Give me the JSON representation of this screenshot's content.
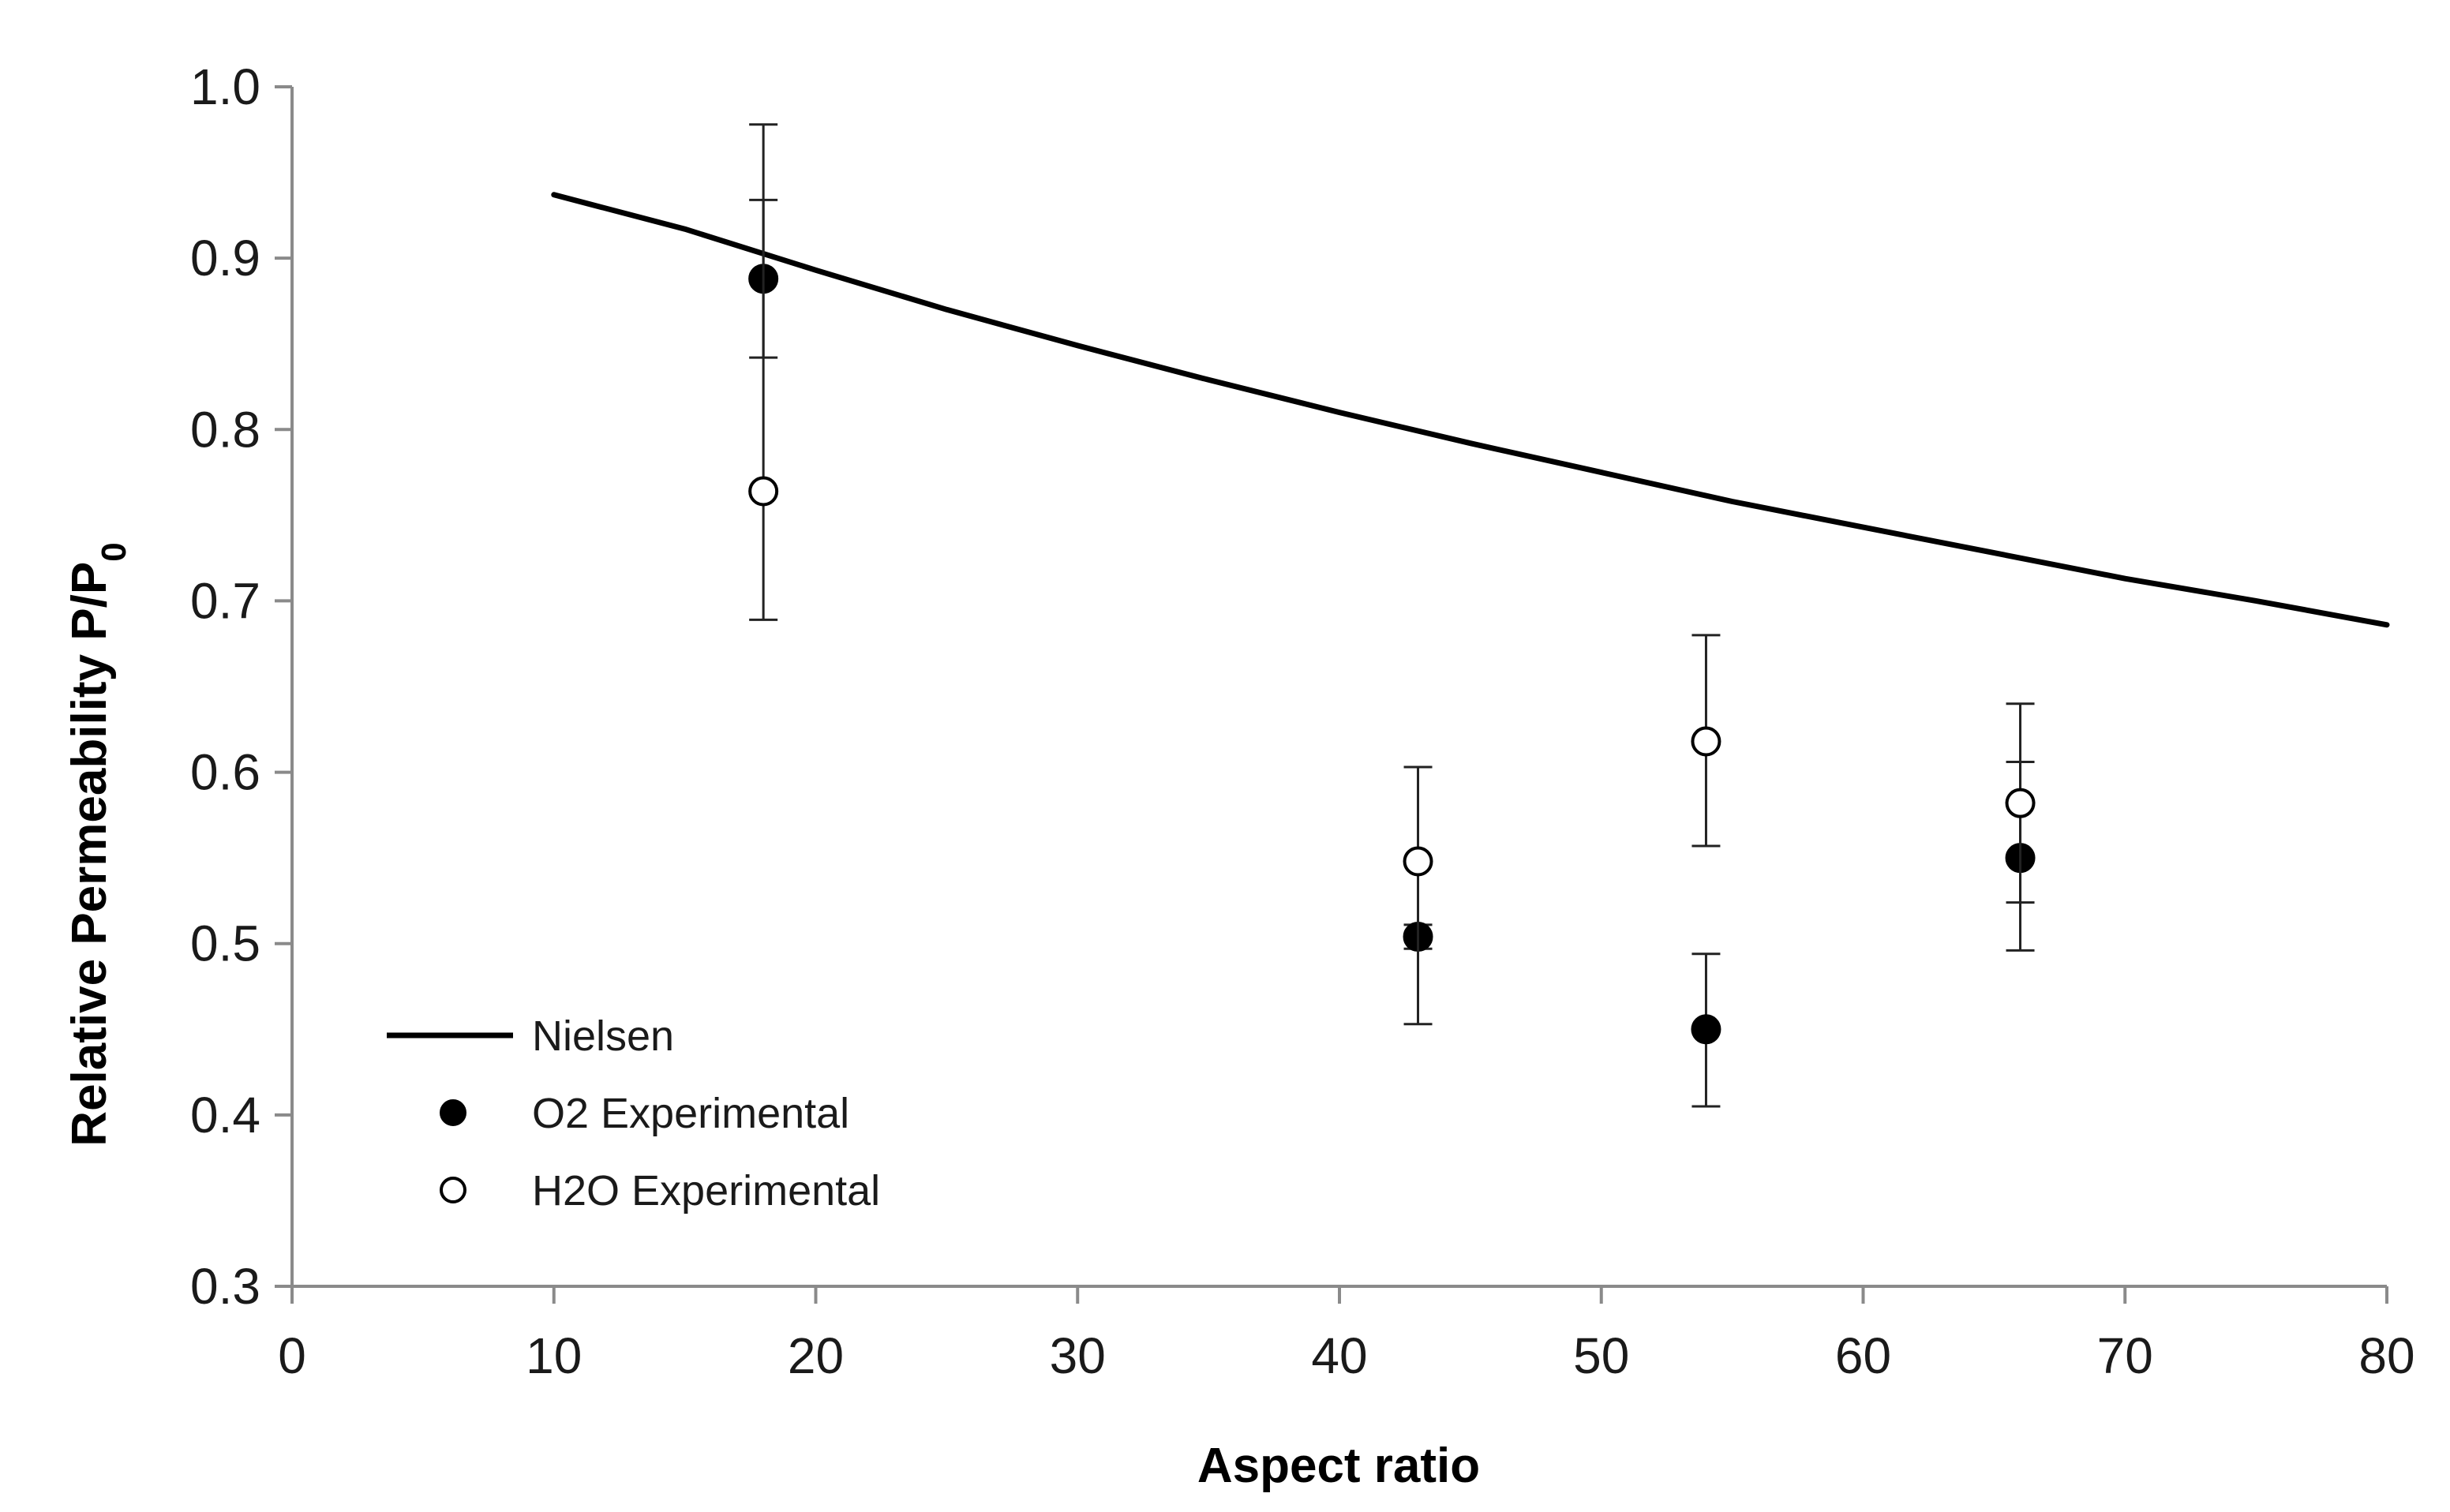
{
  "chart_data": {
    "type": "scatter",
    "title": "",
    "xlabel": "Aspect ratio",
    "ylabel_main": "Relative Permeability P/P",
    "ylabel_subscript": "0",
    "xlim": [
      0,
      80
    ],
    "ylim": [
      0.3,
      1.0
    ],
    "x_ticks": [
      0,
      10,
      20,
      30,
      40,
      50,
      60,
      70,
      80
    ],
    "x_tick_labels": [
      "0",
      "10",
      "20",
      "30",
      "40",
      "50",
      "60",
      "70",
      "80"
    ],
    "y_ticks": [
      0.3,
      0.4,
      0.5,
      0.6,
      0.7,
      0.8,
      0.9,
      1.0
    ],
    "y_tick_labels": [
      "0.3",
      "0.4",
      "0.5",
      "0.6",
      "0.7",
      "0.8",
      "0.9",
      "1.0"
    ],
    "grid": false,
    "legend_position": "bottom-left",
    "series": [
      {
        "name": "Nielsen",
        "kind": "line",
        "color": "#000000",
        "points": [
          [
            10,
            0.937
          ],
          [
            15,
            0.917
          ],
          [
            20,
            0.893
          ],
          [
            25,
            0.87
          ],
          [
            30,
            0.849
          ],
          [
            35,
            0.829
          ],
          [
            40,
            0.81
          ],
          [
            45,
            0.792
          ],
          [
            50,
            0.775
          ],
          [
            55,
            0.758
          ],
          [
            60,
            0.743
          ],
          [
            65,
            0.728
          ],
          [
            70,
            0.713
          ],
          [
            75,
            0.7
          ],
          [
            80,
            0.686
          ]
        ]
      },
      {
        "name": "O2 Experimental",
        "kind": "marker",
        "marker": "filled-circle",
        "color": "#000000",
        "points": [
          {
            "x": 18,
            "y": 0.888,
            "err_low": 0.842,
            "err_high": 0.934
          },
          {
            "x": 43,
            "y": 0.504,
            "err_low": 0.497,
            "err_high": 0.511
          },
          {
            "x": 54,
            "y": 0.45,
            "err_low": 0.405,
            "err_high": 0.494
          },
          {
            "x": 66,
            "y": 0.55,
            "err_low": 0.524,
            "err_high": 0.606
          }
        ]
      },
      {
        "name": "H2O Experimental",
        "kind": "marker",
        "marker": "open-circle",
        "color": "#000000",
        "points": [
          {
            "x": 18,
            "y": 0.764,
            "err_low": 0.689,
            "err_high": 0.978
          },
          {
            "x": 43,
            "y": 0.548,
            "err_low": 0.453,
            "err_high": 0.603
          },
          {
            "x": 54,
            "y": 0.618,
            "err_low": 0.557,
            "err_high": 0.68
          },
          {
            "x": 66,
            "y": 0.582,
            "err_low": 0.496,
            "err_high": 0.64
          }
        ]
      }
    ]
  }
}
